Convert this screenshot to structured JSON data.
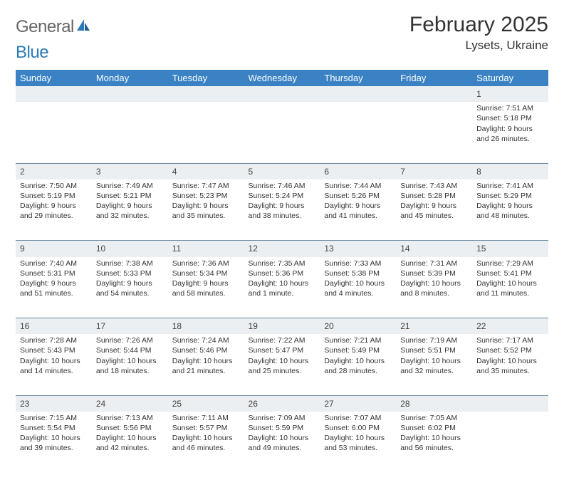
{
  "brand": {
    "part1": "General",
    "part2": "Blue"
  },
  "title": "February 2025",
  "location": "Lysets, Ukraine",
  "colors": {
    "header_bg": "#3a82c4",
    "header_text": "#ffffff",
    "daynum_bg": "#eceff1",
    "rule": "#6a88a0",
    "text": "#333333",
    "logo_gray": "#666666",
    "logo_blue": "#2a7ab8",
    "background": "#ffffff"
  },
  "weekdays": [
    "Sunday",
    "Monday",
    "Tuesday",
    "Wednesday",
    "Thursday",
    "Friday",
    "Saturday"
  ],
  "weeks": [
    {
      "nums": [
        "",
        "",
        "",
        "",
        "",
        "",
        "1"
      ],
      "cells": [
        [
          "",
          "",
          "",
          ""
        ],
        [
          "",
          "",
          "",
          ""
        ],
        [
          "",
          "",
          "",
          ""
        ],
        [
          "",
          "",
          "",
          ""
        ],
        [
          "",
          "",
          "",
          ""
        ],
        [
          "",
          "",
          "",
          ""
        ],
        [
          "Sunrise: 7:51 AM",
          "Sunset: 5:18 PM",
          "Daylight: 9 hours",
          "and 26 minutes."
        ]
      ]
    },
    {
      "nums": [
        "2",
        "3",
        "4",
        "5",
        "6",
        "7",
        "8"
      ],
      "cells": [
        [
          "Sunrise: 7:50 AM",
          "Sunset: 5:19 PM",
          "Daylight: 9 hours",
          "and 29 minutes."
        ],
        [
          "Sunrise: 7:49 AM",
          "Sunset: 5:21 PM",
          "Daylight: 9 hours",
          "and 32 minutes."
        ],
        [
          "Sunrise: 7:47 AM",
          "Sunset: 5:23 PM",
          "Daylight: 9 hours",
          "and 35 minutes."
        ],
        [
          "Sunrise: 7:46 AM",
          "Sunset: 5:24 PM",
          "Daylight: 9 hours",
          "and 38 minutes."
        ],
        [
          "Sunrise: 7:44 AM",
          "Sunset: 5:26 PM",
          "Daylight: 9 hours",
          "and 41 minutes."
        ],
        [
          "Sunrise: 7:43 AM",
          "Sunset: 5:28 PM",
          "Daylight: 9 hours",
          "and 45 minutes."
        ],
        [
          "Sunrise: 7:41 AM",
          "Sunset: 5:29 PM",
          "Daylight: 9 hours",
          "and 48 minutes."
        ]
      ]
    },
    {
      "nums": [
        "9",
        "10",
        "11",
        "12",
        "13",
        "14",
        "15"
      ],
      "cells": [
        [
          "Sunrise: 7:40 AM",
          "Sunset: 5:31 PM",
          "Daylight: 9 hours",
          "and 51 minutes."
        ],
        [
          "Sunrise: 7:38 AM",
          "Sunset: 5:33 PM",
          "Daylight: 9 hours",
          "and 54 minutes."
        ],
        [
          "Sunrise: 7:36 AM",
          "Sunset: 5:34 PM",
          "Daylight: 9 hours",
          "and 58 minutes."
        ],
        [
          "Sunrise: 7:35 AM",
          "Sunset: 5:36 PM",
          "Daylight: 10 hours",
          "and 1 minute."
        ],
        [
          "Sunrise: 7:33 AM",
          "Sunset: 5:38 PM",
          "Daylight: 10 hours",
          "and 4 minutes."
        ],
        [
          "Sunrise: 7:31 AM",
          "Sunset: 5:39 PM",
          "Daylight: 10 hours",
          "and 8 minutes."
        ],
        [
          "Sunrise: 7:29 AM",
          "Sunset: 5:41 PM",
          "Daylight: 10 hours",
          "and 11 minutes."
        ]
      ]
    },
    {
      "nums": [
        "16",
        "17",
        "18",
        "19",
        "20",
        "21",
        "22"
      ],
      "cells": [
        [
          "Sunrise: 7:28 AM",
          "Sunset: 5:43 PM",
          "Daylight: 10 hours",
          "and 14 minutes."
        ],
        [
          "Sunrise: 7:26 AM",
          "Sunset: 5:44 PM",
          "Daylight: 10 hours",
          "and 18 minutes."
        ],
        [
          "Sunrise: 7:24 AM",
          "Sunset: 5:46 PM",
          "Daylight: 10 hours",
          "and 21 minutes."
        ],
        [
          "Sunrise: 7:22 AM",
          "Sunset: 5:47 PM",
          "Daylight: 10 hours",
          "and 25 minutes."
        ],
        [
          "Sunrise: 7:21 AM",
          "Sunset: 5:49 PM",
          "Daylight: 10 hours",
          "and 28 minutes."
        ],
        [
          "Sunrise: 7:19 AM",
          "Sunset: 5:51 PM",
          "Daylight: 10 hours",
          "and 32 minutes."
        ],
        [
          "Sunrise: 7:17 AM",
          "Sunset: 5:52 PM",
          "Daylight: 10 hours",
          "and 35 minutes."
        ]
      ]
    },
    {
      "nums": [
        "23",
        "24",
        "25",
        "26",
        "27",
        "28",
        ""
      ],
      "cells": [
        [
          "Sunrise: 7:15 AM",
          "Sunset: 5:54 PM",
          "Daylight: 10 hours",
          "and 39 minutes."
        ],
        [
          "Sunrise: 7:13 AM",
          "Sunset: 5:56 PM",
          "Daylight: 10 hours",
          "and 42 minutes."
        ],
        [
          "Sunrise: 7:11 AM",
          "Sunset: 5:57 PM",
          "Daylight: 10 hours",
          "and 46 minutes."
        ],
        [
          "Sunrise: 7:09 AM",
          "Sunset: 5:59 PM",
          "Daylight: 10 hours",
          "and 49 minutes."
        ],
        [
          "Sunrise: 7:07 AM",
          "Sunset: 6:00 PM",
          "Daylight: 10 hours",
          "and 53 minutes."
        ],
        [
          "Sunrise: 7:05 AM",
          "Sunset: 6:02 PM",
          "Daylight: 10 hours",
          "and 56 minutes."
        ],
        [
          "",
          "",
          "",
          ""
        ]
      ]
    }
  ]
}
